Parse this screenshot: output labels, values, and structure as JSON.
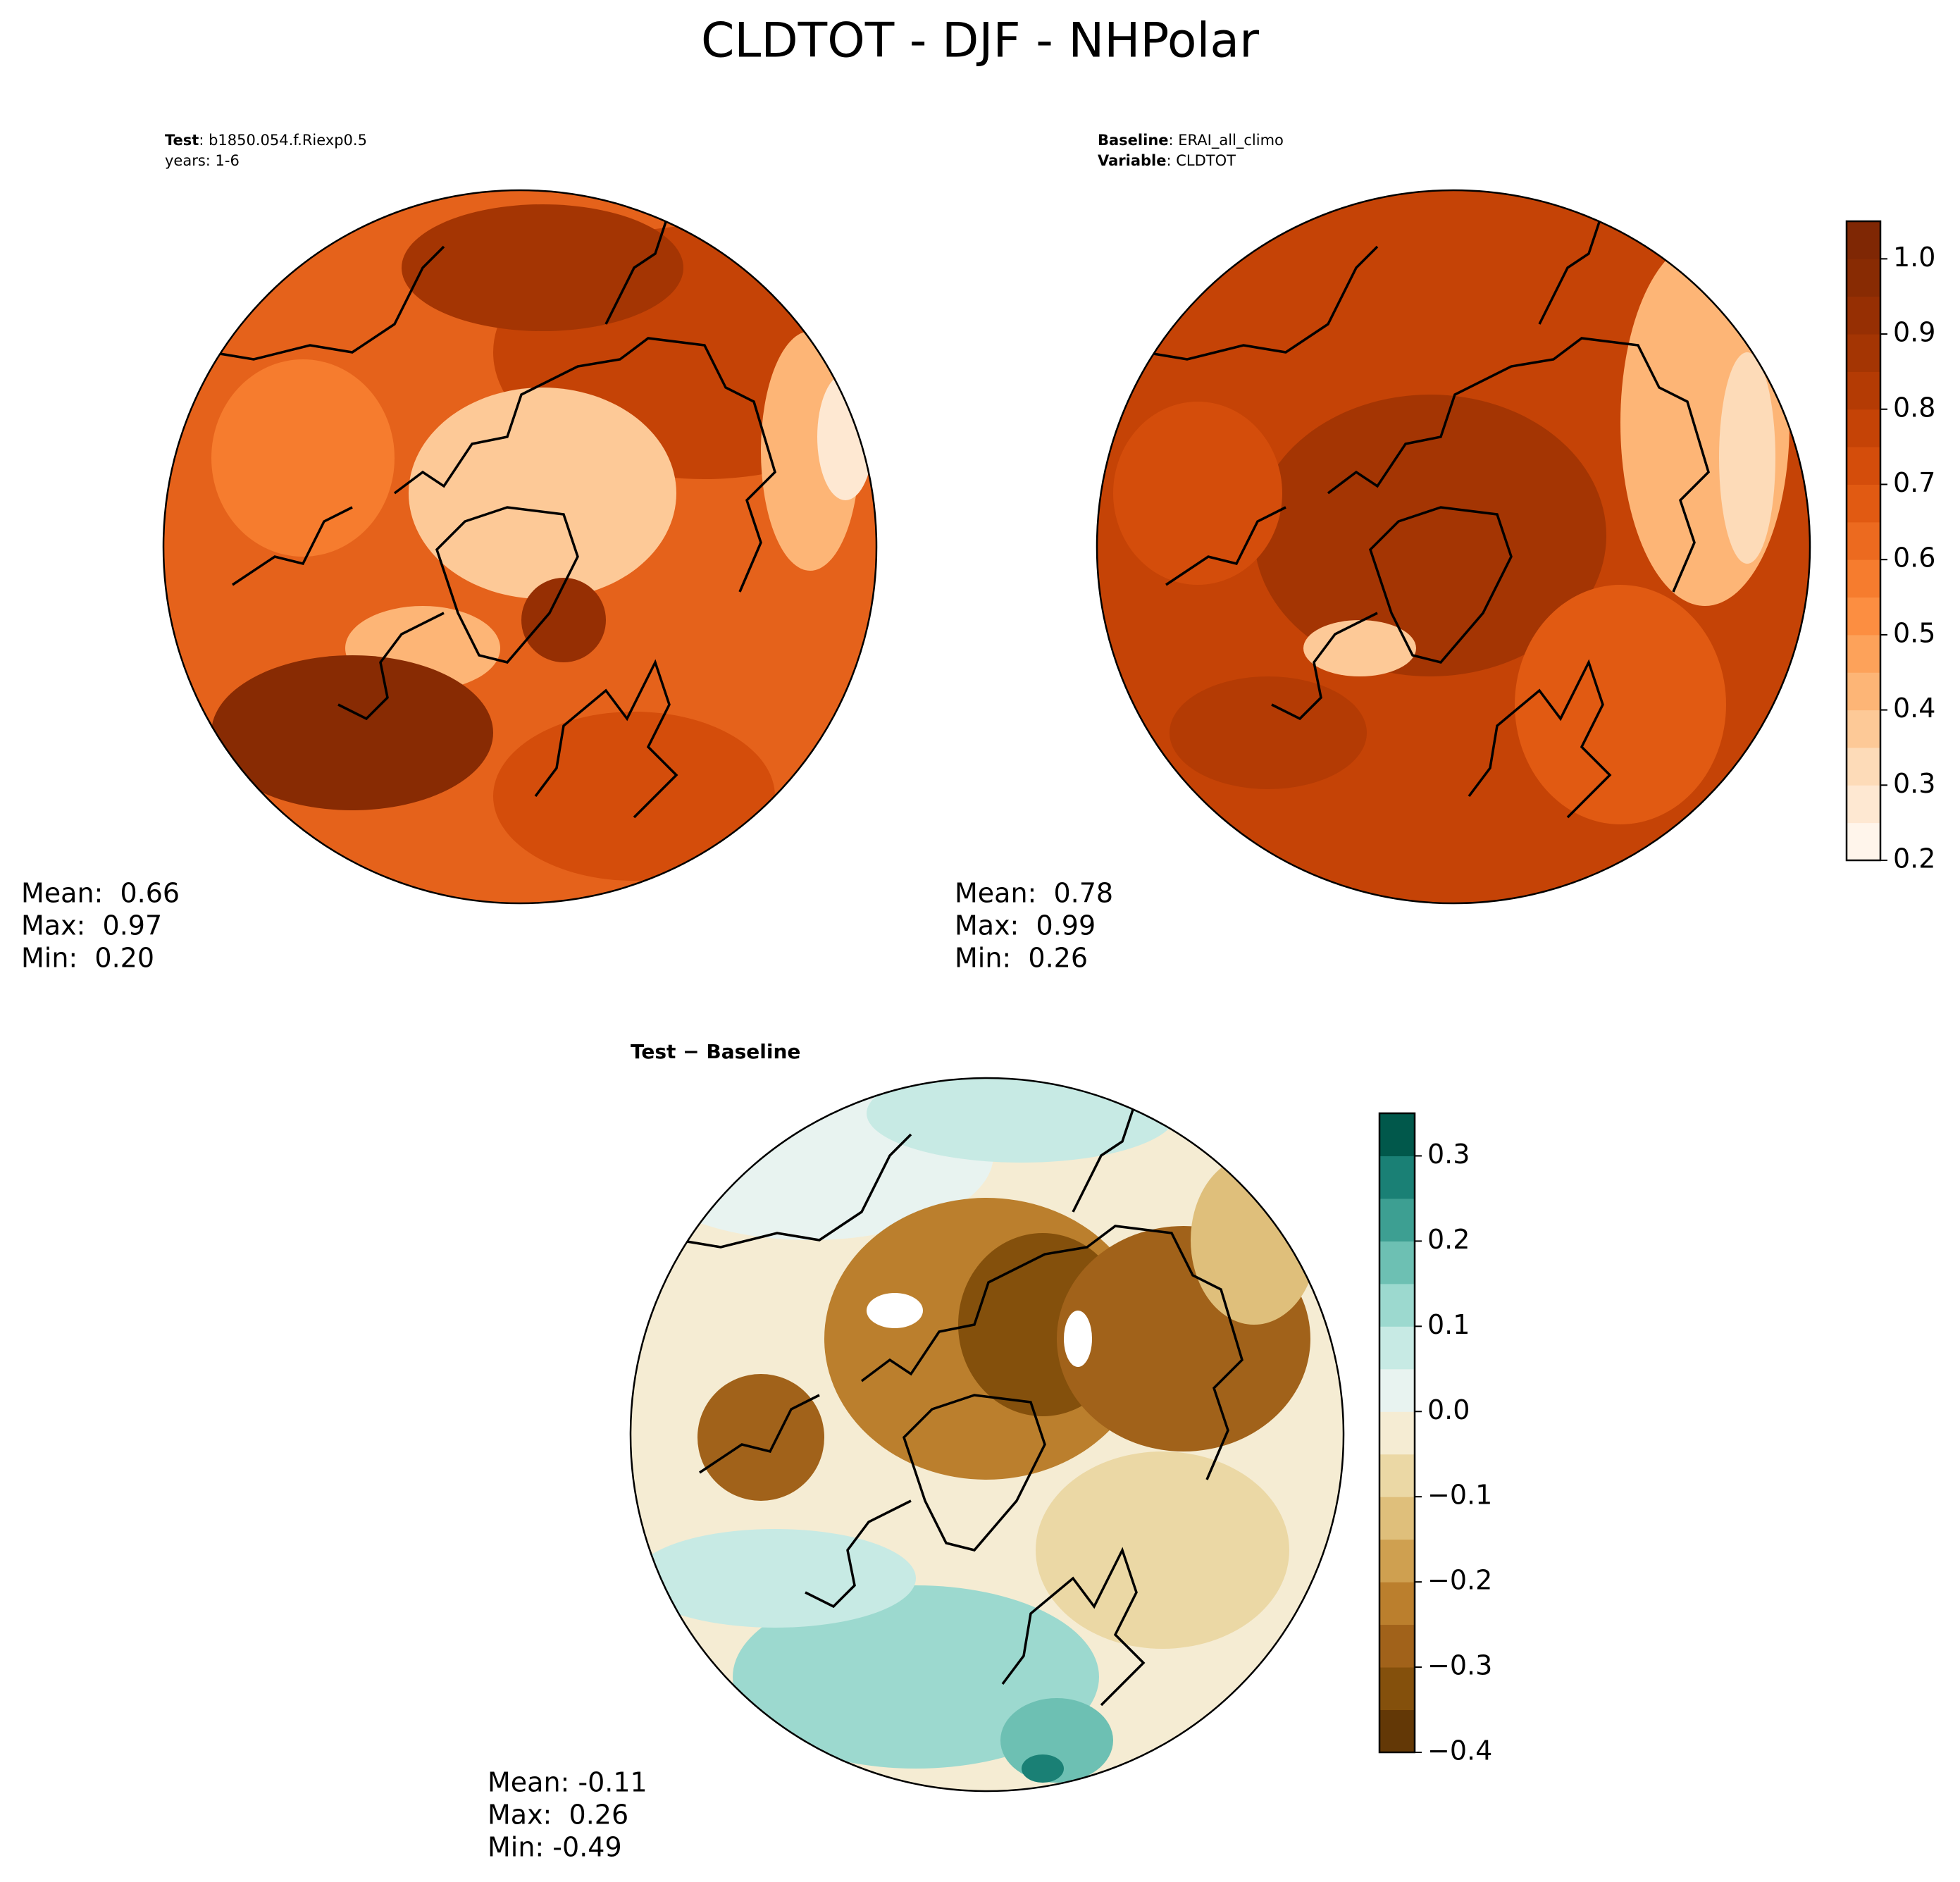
{
  "title": "CLDTOT - DJF - NHPolar",
  "panels": [
    {
      "header": [
        {
          "bold": "Test",
          "text": ": b1850.054.f.Riexp0.5"
        },
        {
          "text": "years: 1-6"
        }
      ],
      "stats": [
        "Mean:  0.66",
        "Max:  0.97",
        "Min:  0.20"
      ]
    },
    {
      "header": [
        {
          "bold": "Baseline",
          "text": ": ERAI_all_climo"
        },
        {
          "bold": "Variable",
          "text": ": CLDTOT"
        }
      ],
      "stats": [
        "Mean:  0.78",
        "Max:  0.99",
        "Min:  0.26"
      ]
    },
    {
      "header": [
        {
          "bold": "Test − Baseline"
        }
      ],
      "stats": [
        "Mean: -0.11",
        "Max:  0.26",
        "Min: -0.49"
      ]
    }
  ],
  "colorbars": [
    {
      "ylim": [
        0.2,
        1.05
      ],
      "ticks": [
        0.2,
        0.3,
        0.4,
        0.5,
        0.6,
        0.7,
        0.8,
        0.9,
        {
          "value": 1.0,
          "label": "1.0"
        }
      ],
      "colors": [
        "#fff5eb",
        "#fee8d2",
        "#fddbb8",
        "#fdc997",
        "#fdb576",
        "#fda25a",
        "#fc8e41",
        "#f67c2e",
        "#ec6a1f",
        "#e15a12",
        "#d44d0b",
        "#c54306",
        "#b43b04",
        "#a43503",
        "#962f03",
        "#882b03",
        "#7f2704"
      ]
    },
    {
      "ylim": [
        -0.4,
        0.35
      ],
      "ticks": [
        {
          "value": -0.4,
          "label": "−0.4"
        },
        {
          "value": -0.3,
          "label": "−0.3"
        },
        {
          "value": -0.2,
          "label": "−0.2"
        },
        {
          "value": -0.1,
          "label": "−0.1"
        },
        {
          "value": 0.0,
          "label": "0.0"
        },
        0.1,
        0.2,
        0.3
      ],
      "colors": [
        "#633806",
        "#84500c",
        "#a1621a",
        "#bb7f2d",
        "#cfa050",
        "#dfbf7b",
        "#ebd8a5",
        "#f5ecd3",
        "#e8f3f0",
        "#c7eae4",
        "#9cd9cf",
        "#6dc0b3",
        "#3d9f92",
        "#1a8075",
        "#01584b"
      ]
    }
  ]
}
